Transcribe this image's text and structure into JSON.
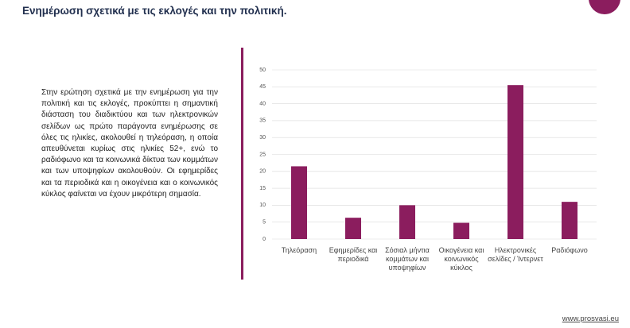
{
  "header": {
    "title": "Ενημέρωση σχετικά με τις εκλογές και την πολιτική."
  },
  "text": "Στην ερώτηση σχετικά με την ενημέρωση για την πολιτική και τις εκλογές, προκύπτει η σημαντική διάσταση του διαδικτύου και των ηλεκτρονικών σελίδων ως πρώτο παράγοντα ενημέρωσης σε όλες τις ηλικίες, ακολουθεί η τηλεόραση, η οποία απευθύνεται κυρίως στις ηλικίες 52+, ενώ το ραδιόφωνο και τα κοινωνικά δίκτυα των κομμάτων και των υποψηφίων ακολουθούν. Οι εφημερίδες και τα περιοδικά και η οικογένεια και ο κοινωνικός κύκλος φαίνεται να έχουν μικρότερη σημασία.",
  "chart_data": {
    "type": "bar",
    "categories": [
      "Τηλεόραση",
      "Εφημερίδες και περιοδικά",
      "Σόσιαλ μήντια κομμάτων και υποψηφίων",
      "Οικογένεια και κοινωνικός κύκλος",
      "Ηλεκτρονικές σελίδες / Ίντερνετ",
      "Ραδιόφωνο"
    ],
    "values": [
      21.5,
      6.3,
      10,
      4.8,
      45.5,
      11
    ],
    "color": "#8b1d5e",
    "ylim": [
      0,
      50
    ],
    "yticks": [
      0,
      5,
      10,
      15,
      20,
      25,
      30,
      35,
      40,
      45,
      50
    ],
    "grid": true
  },
  "footer": {
    "link": "www.prosvasi.eu"
  }
}
